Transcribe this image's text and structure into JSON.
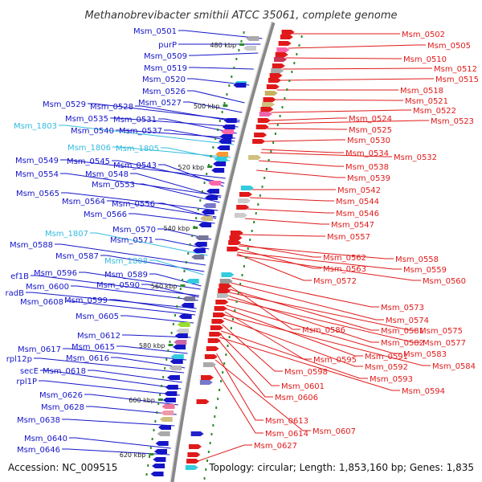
{
  "title": "Methanobrevibacter smithii ATCC 35061, complete genome",
  "accession": "Accession: NC_009515",
  "topology": "Topology: circular; Length: 1,853,160 bp; Genes: 1,835",
  "colors": {
    "left_gene": "#1515c8",
    "rna_gene": "#33bbdd",
    "right_gene": "#e01a1a",
    "backbone": "#888888",
    "tick_mark": "#2e8b2e",
    "pseudo_dot": "#2e8b2e"
  },
  "ticks": [
    "480 kbp",
    "500 kbp",
    "520 kbp",
    "540 kbp",
    "560 kbp",
    "580 kbp",
    "600 kbp",
    "620 kbp"
  ],
  "left_genes": [
    "Msm_0501",
    "purP",
    "Msm_0509",
    "Msm_0519",
    "Msm_0520",
    "Msm_0526",
    "Msm_0527",
    "Msm_0529",
    "Msm_0528",
    "Msm_0535",
    "Msm_0531",
    "Msm_1803",
    "Msm_0540",
    "Msm_0537",
    "Msm_1806",
    "Msm_1805",
    "Msm_0549",
    "Msm_0545",
    "Msm_0543",
    "Msm_0554",
    "Msm_0548",
    "Msm_0553",
    "Msm_0565",
    "Msm_0564",
    "Msm_0556",
    "Msm_0566",
    "Msm_1807",
    "Msm_0570",
    "Msm_0588",
    "Msm_0571",
    "Msm_0587",
    "Msm_1808",
    "ef1B",
    "Msm_0596",
    "Msm_0589",
    "Msm_0600",
    "Msm_0590",
    "radB",
    "Msm_0608",
    "Msm_0599",
    "Msm_0605",
    "Msm_0612",
    "Msm_0617",
    "Msm_0615",
    "rpl12p",
    "Msm_0616",
    "secE",
    "Msm_0618",
    "rpl1P",
    "Msm_0626",
    "Msm_0628",
    "Msm_0638",
    "Msm_0640",
    "Msm_0646"
  ],
  "right_genes": [
    "Msm_0502",
    "Msm_0505",
    "Msm_0510",
    "Msm_0512",
    "Msm_0515",
    "Msm_0518",
    "Msm_0521",
    "Msm_0522",
    "Msm_0524",
    "Msm_0523",
    "Msm_0525",
    "Msm_0530",
    "Msm_0534",
    "Msm_0532",
    "Msm_0538",
    "Msm_0539",
    "Msm_0542",
    "Msm_0544",
    "Msm_0546",
    "Msm_0547",
    "Msm_0557",
    "Msm_0562",
    "Msm_0558",
    "Msm_0563",
    "Msm_0559",
    "Msm_0572",
    "Msm_0560",
    "Msm_0573",
    "Msm_0574",
    "Msm_0586",
    "Msm_0581",
    "Msm_0575",
    "Msm_0582",
    "Msm_0577",
    "Msm_0583",
    "Msm_0591",
    "Msm_0595",
    "Msm_0584",
    "Msm_0592",
    "Msm_0598",
    "Msm_0593",
    "Msm_0601",
    "Msm_0594",
    "Msm_0606",
    "Msm_0613",
    "Msm_0607",
    "Msm_0614",
    "Msm_0627"
  ]
}
